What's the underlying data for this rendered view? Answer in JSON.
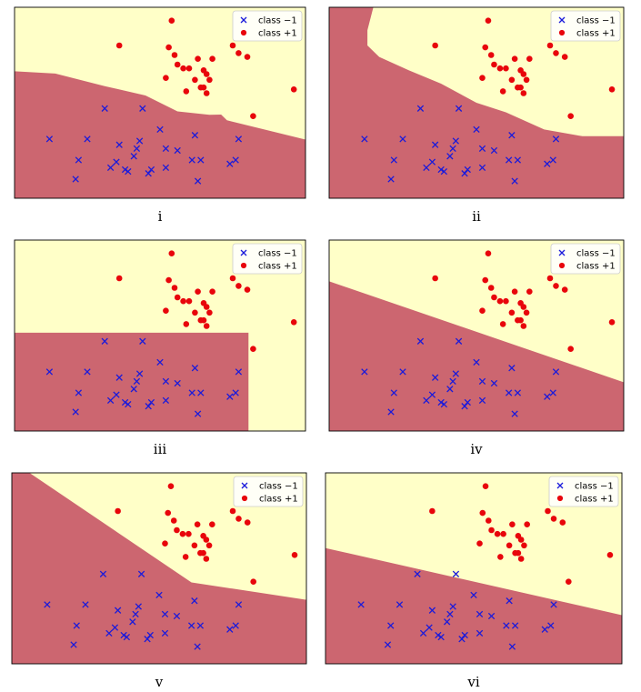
{
  "chart_data": [
    {
      "type": "scatter",
      "caption": "i",
      "boundary": "nonlinear",
      "xlim": [
        0,
        10
      ],
      "ylim": [
        0,
        10
      ],
      "legend": {
        "position": "top-right",
        "labels": [
          "class −1",
          "class +1"
        ]
      }
    },
    {
      "type": "scatter",
      "caption": "ii",
      "boundary": "curved",
      "xlim": [
        0,
        10
      ],
      "ylim": [
        0,
        10
      ],
      "legend": {
        "position": "top-right",
        "labels": [
          "class −1",
          "class +1"
        ]
      }
    },
    {
      "type": "scatter",
      "caption": "iii",
      "boundary": "axis-aligned",
      "xlim": [
        0,
        10
      ],
      "ylim": [
        0,
        10
      ],
      "legend": {
        "position": "top-right",
        "labels": [
          "class −1",
          "class +1"
        ]
      }
    },
    {
      "type": "scatter",
      "caption": "iv",
      "boundary": "linear",
      "xlim": [
        0,
        10
      ],
      "ylim": [
        0,
        10
      ],
      "legend": {
        "position": "top-right",
        "labels": [
          "class −1",
          "class +1"
        ]
      }
    },
    {
      "type": "scatter",
      "caption": "v",
      "boundary": "piecewise-linear",
      "xlim": [
        0,
        10
      ],
      "ylim": [
        0,
        10
      ],
      "legend": {
        "position": "top-right",
        "labels": [
          "class −1",
          "class +1"
        ]
      }
    },
    {
      "type": "scatter",
      "caption": "vi",
      "boundary": "linear",
      "xlim": [
        0,
        10
      ],
      "ylim": [
        0,
        10
      ],
      "legend": {
        "position": "top-right",
        "labels": [
          "class −1",
          "class +1"
        ]
      }
    }
  ],
  "series": {
    "class_neg": {
      "label": "class −1",
      "color": "#1a1adb",
      "points": [
        [
          1.2,
          3.1
        ],
        [
          2.5,
          3.1
        ],
        [
          3.1,
          4.7
        ],
        [
          4.4,
          4.7
        ],
        [
          5.0,
          3.6
        ],
        [
          6.2,
          3.3
        ],
        [
          7.7,
          3.1
        ],
        [
          3.6,
          2.8
        ],
        [
          4.3,
          3.0
        ],
        [
          2.2,
          2.0
        ],
        [
          3.5,
          1.9
        ],
        [
          4.1,
          2.2
        ],
        [
          4.2,
          2.6
        ],
        [
          5.2,
          2.6
        ],
        [
          5.6,
          2.5
        ],
        [
          6.4,
          2.0
        ],
        [
          7.4,
          1.8
        ],
        [
          7.6,
          2.0
        ],
        [
          6.1,
          2.0
        ],
        [
          4.7,
          1.5
        ],
        [
          5.2,
          1.6
        ],
        [
          3.3,
          1.6
        ],
        [
          3.8,
          1.5
        ],
        [
          3.9,
          1.4
        ],
        [
          4.6,
          1.3
        ],
        [
          2.1,
          1.0
        ],
        [
          6.3,
          0.9
        ]
      ]
    },
    "class_pos": {
      "label": "class +1",
      "color": "#e8050b",
      "points": [
        [
          5.4,
          9.3
        ],
        [
          3.6,
          8.0
        ],
        [
          7.5,
          8.0
        ],
        [
          5.3,
          7.9
        ],
        [
          5.5,
          7.5
        ],
        [
          7.7,
          7.6
        ],
        [
          5.6,
          7.0
        ],
        [
          6.3,
          7.3
        ],
        [
          6.8,
          7.3
        ],
        [
          8.0,
          7.4
        ],
        [
          5.8,
          6.8
        ],
        [
          6.0,
          6.8
        ],
        [
          6.5,
          6.7
        ],
        [
          6.6,
          6.5
        ],
        [
          6.2,
          6.2
        ],
        [
          6.7,
          6.2
        ],
        [
          5.2,
          6.3
        ],
        [
          6.5,
          5.8
        ],
        [
          6.4,
          5.8
        ],
        [
          6.6,
          5.5
        ],
        [
          5.9,
          5.6
        ],
        [
          9.6,
          5.7
        ],
        [
          8.2,
          4.3
        ]
      ]
    },
    "regions": {
      "neg": "#cc6670",
      "pos": "#ffffc8"
    }
  }
}
